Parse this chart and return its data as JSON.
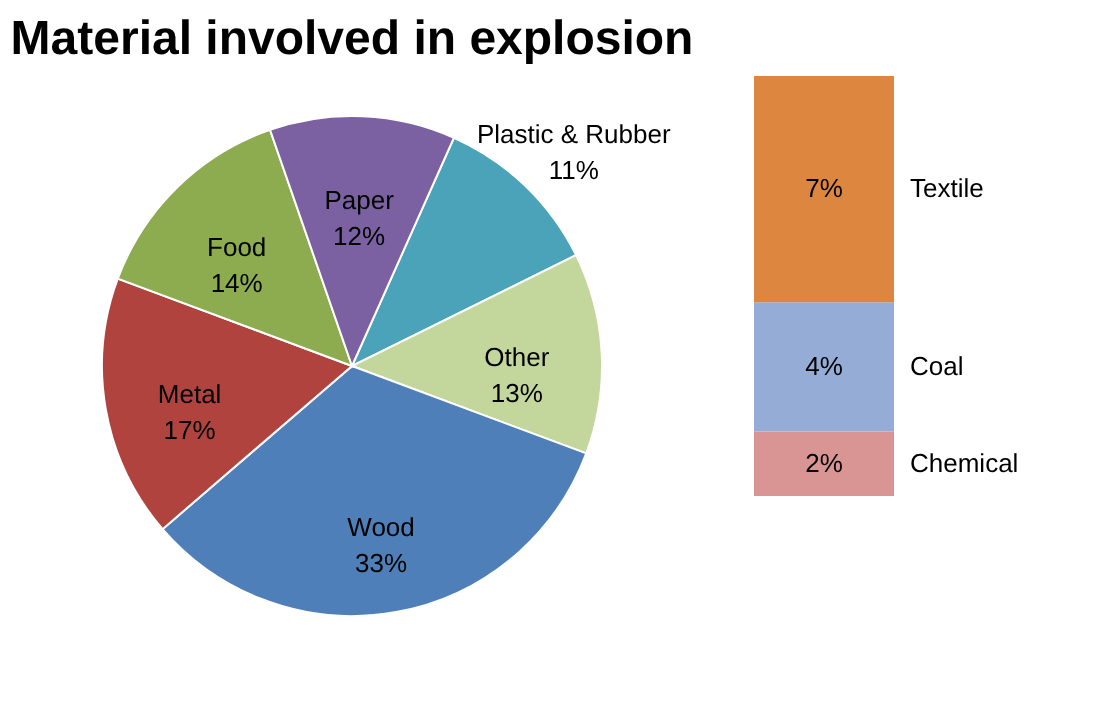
{
  "chart_data": [
    {
      "type": "pie",
      "title": "Material involved in explosion",
      "categories": [
        "Plastic & Rubber",
        "Other",
        "Wood",
        "Metal",
        "Food",
        "Paper"
      ],
      "values": [
        11,
        13,
        33,
        17,
        14,
        12
      ],
      "value_labels": [
        "11%",
        "13%",
        "33%",
        "17%",
        "14%",
        "12%"
      ],
      "colors": [
        "#4ba3b9",
        "#c3d69b",
        "#4f7fb9",
        "#b1433f",
        "#8dab4f",
        "#7b61a1"
      ]
    },
    {
      "type": "bar",
      "stacked": true,
      "tick_labels": false,
      "categories": [
        null
      ],
      "series": [
        {
          "name": "Chemical",
          "color": "#d99594",
          "values": [
            2
          ],
          "value_labels": [
            "2%"
          ]
        },
        {
          "name": "Coal",
          "color": "#95add6",
          "values": [
            4
          ],
          "value_labels": [
            "4%"
          ]
        },
        {
          "name": "Textile",
          "color": "#dd863f",
          "values": [
            7
          ],
          "value_labels": [
            "7%"
          ]
        }
      ]
    }
  ]
}
